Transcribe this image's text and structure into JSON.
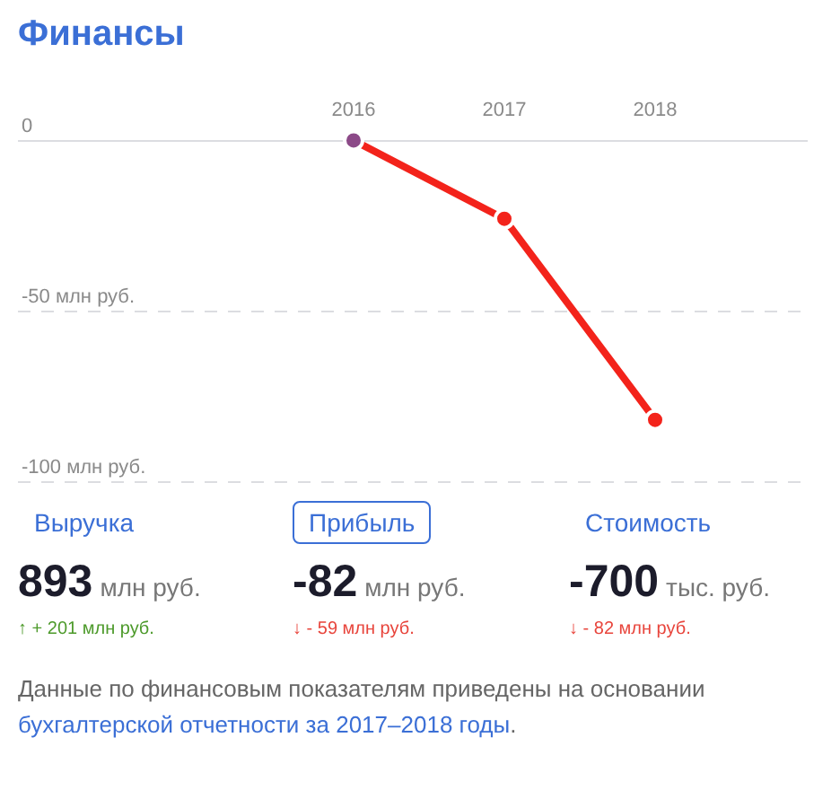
{
  "chart_data": {
    "type": "line",
    "title": "Финансы",
    "categories": [
      "2016",
      "2017",
      "2018"
    ],
    "series": [
      {
        "color": "#f3231b",
        "colors": [
          "#8c4a88",
          "#f3231b",
          "#f3231b"
        ],
        "values": [
          0,
          -23,
          -82
        ]
      }
    ],
    "ylim": [
      -100,
      0
    ],
    "yticks": [
      0,
      {
        "value": -50,
        "label": "-50 млн руб."
      },
      {
        "value": -100,
        "label": "-100 млн руб."
      }
    ],
    "grid": "y",
    "marker": "circle",
    "line_style": "solid",
    "annotations": [
      "Выручка",
      "893 млн руб.",
      "↑ + 201 млн руб.",
      "Прибыль",
      "-82 млн руб.",
      "↓ - 59 млн руб.",
      "Стоимость",
      "-700 тыс. руб.",
      "↓ - 82 млн руб.",
      "Данные по финансовым показателям приведены на основании",
      "бухгалтерской отчетности за 2017–2018 годы",
      "."
    ]
  }
}
